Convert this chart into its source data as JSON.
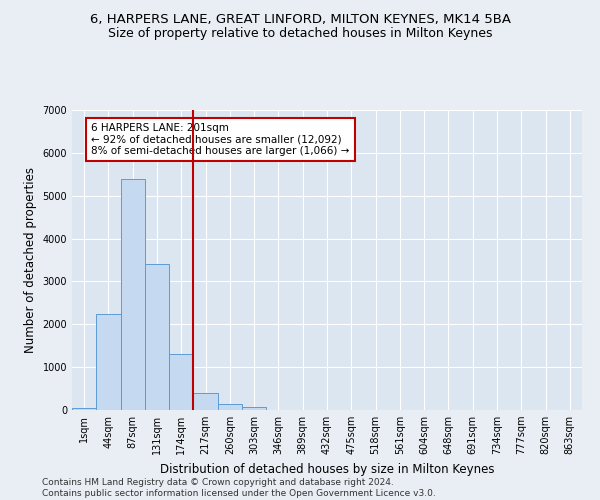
{
  "title_line1": "6, HARPERS LANE, GREAT LINFORD, MILTON KEYNES, MK14 5BA",
  "title_line2": "Size of property relative to detached houses in Milton Keynes",
  "xlabel": "Distribution of detached houses by size in Milton Keynes",
  "ylabel": "Number of detached properties",
  "footnote": "Contains HM Land Registry data © Crown copyright and database right 2024.\nContains public sector information licensed under the Open Government Licence v3.0.",
  "bar_labels": [
    "1sqm",
    "44sqm",
    "87sqm",
    "131sqm",
    "174sqm",
    "217sqm",
    "260sqm",
    "303sqm",
    "346sqm",
    "389sqm",
    "432sqm",
    "475sqm",
    "518sqm",
    "561sqm",
    "604sqm",
    "648sqm",
    "691sqm",
    "734sqm",
    "777sqm",
    "820sqm",
    "863sqm"
  ],
  "bar_values": [
    50,
    2250,
    5400,
    3400,
    1300,
    400,
    150,
    70,
    0,
    0,
    0,
    0,
    0,
    0,
    0,
    0,
    0,
    0,
    0,
    0,
    0
  ],
  "bar_color": "#c5d9f1",
  "bar_edge_color": "#5b9bd5",
  "vline_x": 4.5,
  "vline_color": "#c00000",
  "annotation_text": "6 HARPERS LANE: 201sqm\n← 92% of detached houses are smaller (12,092)\n8% of semi-detached houses are larger (1,066) →",
  "annotation_box_color": "#c00000",
  "annotation_box_fill": "white",
  "ylim": [
    0,
    7000
  ],
  "yticks": [
    0,
    1000,
    2000,
    3000,
    4000,
    5000,
    6000,
    7000
  ],
  "bg_color": "#e9eef4",
  "plot_bg_color": "#dce6f1",
  "grid_color": "white",
  "title_fontsize": 9.5,
  "subtitle_fontsize": 9,
  "tick_fontsize": 7,
  "label_fontsize": 8.5,
  "footnote_fontsize": 6.5
}
